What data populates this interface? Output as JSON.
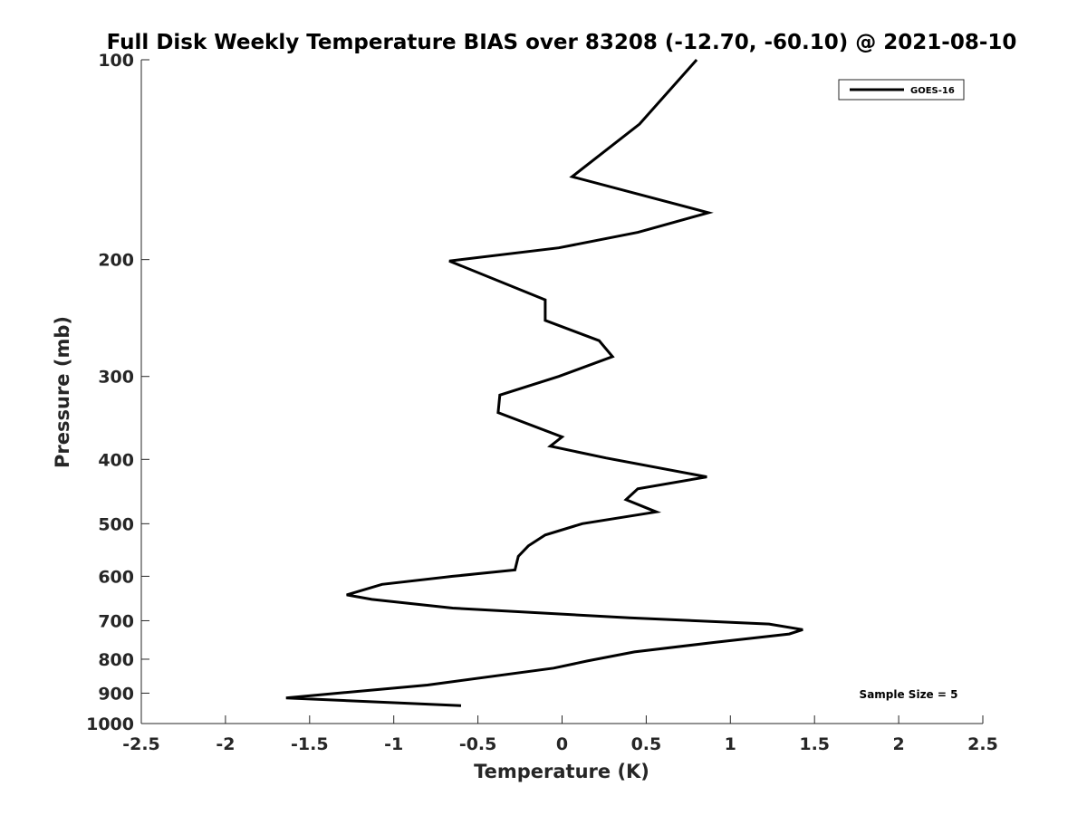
{
  "chart_data": {
    "type": "line",
    "title": "Full Disk Weekly Temperature BIAS over 83208 (-12.70, -60.10) @ 2021-08-10",
    "xlabel": "Temperature (K)",
    "ylabel": "Pressure (mb)",
    "xlim": [
      -2.5,
      2.5
    ],
    "ylim": [
      100,
      1000
    ],
    "y_scale": "log",
    "y_reversed": true,
    "xticks": [
      "-2.5",
      "-2",
      "-1.5",
      "-1",
      "-0.5",
      "0",
      "0.5",
      "1",
      "1.5",
      "2",
      "2.5"
    ],
    "xtick_values": [
      -2.5,
      -2,
      -1.5,
      -1,
      -0.5,
      0,
      0.5,
      1,
      1.5,
      2,
      2.5
    ],
    "yticks": [
      "100",
      "200",
      "300",
      "400",
      "500",
      "600",
      "700",
      "800",
      "900",
      "1000"
    ],
    "ytick_values": [
      100,
      200,
      300,
      400,
      500,
      600,
      700,
      800,
      900,
      1000
    ],
    "grid": false,
    "legend_position": "top-right",
    "annotation": "Sample Size = 5",
    "line_color": "#000000",
    "series": [
      {
        "name": "GOES-16",
        "points": [
          [
            0.8,
            100
          ],
          [
            0.46,
            125
          ],
          [
            0.06,
            150
          ],
          [
            0.87,
            170
          ],
          [
            0.45,
            182
          ],
          [
            -0.02,
            192
          ],
          [
            -0.67,
            201
          ],
          [
            -0.1,
            230
          ],
          [
            -0.1,
            247
          ],
          [
            0.22,
            265
          ],
          [
            0.3,
            280
          ],
          [
            -0.02,
            300
          ],
          [
            -0.37,
            320
          ],
          [
            -0.38,
            340
          ],
          [
            0.0,
            370
          ],
          [
            -0.07,
            382
          ],
          [
            0.26,
            398
          ],
          [
            0.86,
            425
          ],
          [
            0.45,
            443
          ],
          [
            0.38,
            460
          ],
          [
            0.56,
            480
          ],
          [
            0.12,
            500
          ],
          [
            -0.1,
            520
          ],
          [
            -0.2,
            540
          ],
          [
            -0.26,
            560
          ],
          [
            -0.28,
            587
          ],
          [
            -0.65,
            600
          ],
          [
            -1.07,
            617
          ],
          [
            -1.28,
            640
          ],
          [
            -1.13,
            650
          ],
          [
            -0.65,
            670
          ],
          [
            0.4,
            693
          ],
          [
            1.23,
            708
          ],
          [
            1.43,
            722
          ],
          [
            1.35,
            733
          ],
          [
            0.9,
            755
          ],
          [
            0.43,
            780
          ],
          [
            0.15,
            805
          ],
          [
            -0.05,
            825
          ],
          [
            -0.8,
            875
          ],
          [
            -1.64,
            915
          ],
          [
            -0.6,
            940
          ]
        ]
      }
    ]
  }
}
